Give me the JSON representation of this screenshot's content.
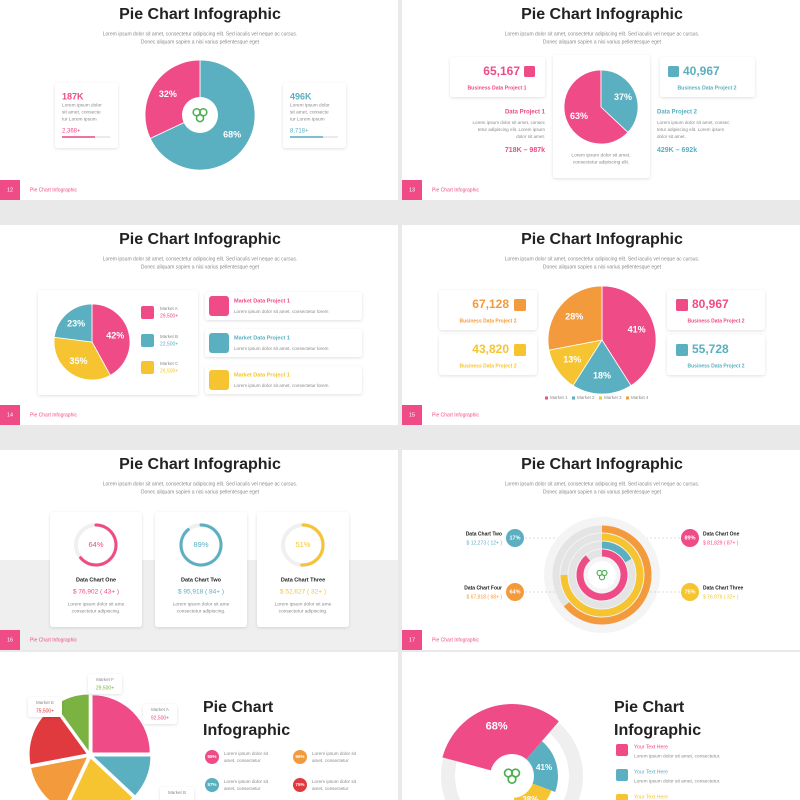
{
  "slides": [
    {
      "page": "12",
      "footer": "Pie Chart Infographic",
      "title": "Pie Chart Infographic",
      "subtitle": [
        "Lorem ipsum dolor sit amet, consectetur adipiscing elit. Sed iaculis vel neque ac cursus.",
        "Donec aliquam sapien a nisi varius pellentesque eget"
      ],
      "cards": [
        {
          "value": "187K",
          "text": [
            "Lorem ipsum dolor",
            "sit amet, consecte",
            "tur Lorem ipsum"
          ],
          "sub": "2,368+",
          "color": "#ee4b87"
        },
        {
          "value": "496K",
          "text": [
            "Lorem ipsum dolor",
            "sit amet, consecte",
            "tur Lorem ipsum"
          ],
          "sub": "8,718+",
          "color": "#5aafc0"
        }
      ],
      "pie": {
        "values": [
          68,
          32
        ],
        "value_labels": [
          "68%",
          "32%"
        ],
        "colors": [
          "#5aafc0",
          "#ee4b87"
        ]
      }
    },
    {
      "page": "13",
      "footer": "Pie Chart Infographic",
      "title": "Pie Chart Infographic",
      "subtitle": [
        "Lorem ipsum dolor sit amet, consectetur adipiscing elit. Sed iaculis vel neque ac cursus.",
        "Donec aliquam sapien a nisi varius pellentesque eget"
      ],
      "cards": [
        {
          "value": "65,167",
          "label": "Business Data Project 1",
          "color": "#ee4b87"
        },
        {
          "value": "40,967",
          "label": "Business Data Project 2",
          "color": "#5aafc0"
        }
      ],
      "projects": [
        {
          "name": "Data Project 1",
          "text": [
            "Lorem ipsum dolor sit amet, consec",
            "tetur adipiscing elit. Lorem ipsum",
            "dolor sit amet."
          ],
          "range": "718K – 987k",
          "color": "#ee4b87"
        },
        {
          "name": "Data Project 2",
          "text": [
            "Lorem ipsum dolor sit amet, consec",
            "tetur adipiscing elit. Lorem ipsum",
            "dolor sit amet."
          ],
          "range": "429K – 692k",
          "color": "#5aafc0"
        }
      ],
      "pie": {
        "values": [
          63,
          37
        ],
        "value_labels": [
          "63%",
          "37%"
        ],
        "colors": [
          "#ee4b87",
          "#5aafc0"
        ]
      },
      "caption": [
        "Lorem ipsum dolor sit amet,",
        "consectetur adipiscing elit."
      ]
    },
    {
      "page": "14",
      "footer": "Pie Chart Infographic",
      "title": "Pie Chart Infographic",
      "subtitle": [
        "Lorem ipsum dolor sit amet, consectetur adipiscing elit. Sed iaculis vel neque ac cursus.",
        "Donec aliquam sapien a nisi varius pellentesque eget"
      ],
      "pie": {
        "values": [
          42,
          35,
          23
        ],
        "value_labels": [
          "42%",
          "35%",
          "23%"
        ],
        "colors": [
          "#ee4b87",
          "#f5c430",
          "#5aafc0"
        ]
      },
      "legend": [
        {
          "name": "Market A",
          "value": "29,500+",
          "color": "#ee4b87"
        },
        {
          "name": "Market B",
          "value": "22,500+",
          "color": "#5aafc0"
        },
        {
          "name": "Market C",
          "value": "26,500+",
          "color": "#f5c430"
        }
      ],
      "cards": [
        {
          "title": "Market Data Project 1",
          "text": "Lorem ipsum dolor sit amet, consectetur lorem",
          "color": "#ee4b87"
        },
        {
          "title": "Market Data Project 1",
          "text": "Lorem ipsum dolor sit amet, consectetur lorem",
          "color": "#5aafc0"
        },
        {
          "title": "Market Data Project 1",
          "text": "Lorem ipsum dolor sit amet, consectetur lorem",
          "color": "#f5c430"
        }
      ]
    },
    {
      "page": "15",
      "footer": "Pie Chart Infographic",
      "title": "Pie Chart Infographic",
      "subtitle": [
        "Lorem ipsum dolor sit amet, consectetur adipiscing elit. Sed iaculis vel neque ac cursus.",
        "Donec aliquam sapien a nisi varius pellentesque eget"
      ],
      "pie": {
        "values": [
          41,
          18,
          13,
          28
        ],
        "value_labels": [
          "41%",
          "18%",
          "13%",
          "28%"
        ],
        "colors": [
          "#ee4b87",
          "#5aafc0",
          "#f5c430",
          "#f39a3c"
        ]
      },
      "legend": [
        "Market 1",
        "Market 2",
        "Market 3",
        "Market 4"
      ],
      "cards": [
        {
          "value": "67,128",
          "label": "Business Data Project 2",
          "color": "#f39a3c"
        },
        {
          "value": "43,820",
          "label": "Business Data Project 2",
          "color": "#f5c430"
        },
        {
          "value": "80,967",
          "label": "Business Data Project 2",
          "color": "#ee4b87"
        },
        {
          "value": "55,728",
          "label": "Business Data Project 2",
          "color": "#5aafc0"
        }
      ]
    },
    {
      "page": "16",
      "footer": "Pie Chart Infographic",
      "title": "Pie Chart Infographic",
      "subtitle": [
        "Lorem ipsum dolor sit amet, consectetur adipiscing elit. Sed iaculis vel neque ac cursus.",
        "Donec aliquam sapien a nisi varius pellentesque eget"
      ],
      "cards": [
        {
          "value": 64,
          "value_label": "64%",
          "title": "Data Chart One",
          "amount": "$ 76,902 ( 43+ )",
          "text": [
            "Lorem ipsum dolor sit ame",
            "consectetur adipiscing."
          ],
          "color": "#ee4b87"
        },
        {
          "value": 89,
          "value_label": "89%",
          "title": "Data Chart Two",
          "amount": "$ 95,918 ( 84+ )",
          "text": [
            "Lorem ipsum dolor sit ame",
            "consectetur adipiscing."
          ],
          "color": "#5aafc0"
        },
        {
          "value": 51,
          "value_label": "51%",
          "title": "Data Chart Three",
          "amount": "$ 52,627 ( 32+ )",
          "text": [
            "Lorem ipsum dolor sit ame",
            "consectetur adipiscing."
          ],
          "color": "#f5c430"
        }
      ]
    },
    {
      "page": "17",
      "footer": "Pie Chart Infographic",
      "title": "Pie Chart Infographic",
      "subtitle": [
        "Lorem ipsum dolor sit amet, consectetur adipiscing elit. Sed iaculis vel neque ac cursus.",
        "Donec aliquam sapien a nisi varius pellentesque eget"
      ],
      "rings": [
        {
          "name": "Data Chart One",
          "value": 89,
          "value_label": "89%",
          "amount": "$ 81,829 ( 87+ )",
          "color": "#ee4b87"
        },
        {
          "name": "Data Chart Two",
          "value": 17,
          "value_label": "17%",
          "amount": "$ 12,273 ( 12+ )",
          "color": "#5aafc0"
        },
        {
          "name": "Data Chart Three",
          "value": 75,
          "value_label": "75%",
          "amount": "$ 76,976 ( 32+ )",
          "color": "#f5c430"
        },
        {
          "name": "Data Chart Four",
          "value": 64,
          "value_label": "64%",
          "amount": "$ 67,918 ( 68+ )",
          "color": "#f39a3c"
        }
      ]
    },
    {
      "title": [
        "Pie Chart",
        "Infographic"
      ],
      "pie": {
        "values": [
          25,
          12,
          20,
          15,
          18,
          10
        ],
        "colors": [
          "#ee4b87",
          "#5aafc0",
          "#f5c430",
          "#f39a3c",
          "#e0393e",
          "#7bb342"
        ]
      },
      "callouts": [
        {
          "name": "Market A",
          "value": "92,500+",
          "color": "#ee4b87"
        },
        {
          "name": "Market B"
        },
        {
          "name": "Market E",
          "value": "75,500+",
          "color": "#e0393e"
        },
        {
          "name": "Market F",
          "value": "29,500+",
          "color": "#7bb342"
        }
      ],
      "items": [
        {
          "value": 55,
          "value_label": "55%",
          "text": [
            "Lorem ipsum dolor sit",
            "amet, consectetur"
          ],
          "color": "#ee4b87"
        },
        {
          "value": 66,
          "value_label": "66%",
          "text": [
            "Lorem ipsum dolor sit",
            "amet, consectetur"
          ],
          "color": "#f39a3c"
        },
        {
          "value": 57,
          "value_label": "57%",
          "text": [
            "Lorem ipsum dolor sit",
            "amet, consectetur"
          ],
          "color": "#5aafc0"
        },
        {
          "value": 75,
          "value_label": "75%",
          "text": [
            "Lorem ipsum dolor sit",
            "amet, consectetur"
          ],
          "color": "#e0393e"
        }
      ]
    },
    {
      "title": [
        "Pie Chart",
        "Infographic"
      ],
      "segments": {
        "values": [
          68,
          41,
          38
        ],
        "value_labels": [
          "68%",
          "41%",
          "38%"
        ],
        "colors": [
          "#ee4b87",
          "#5aafc0",
          "#f5c430"
        ]
      },
      "items": [
        {
          "title": "Your Text Here",
          "text": "Lorem ipsum dolor sit amet, consectetur.",
          "color": "#ee4b87"
        },
        {
          "title": "Your Text Here",
          "text": "Lorem ipsum dolor sit amet, consectetur.",
          "color": "#5aafc0"
        },
        {
          "title": "Your Text Here",
          "text": "Lorem ipsum dolor sit amet, consectetur.",
          "color": "#f5c430"
        }
      ]
    }
  ]
}
